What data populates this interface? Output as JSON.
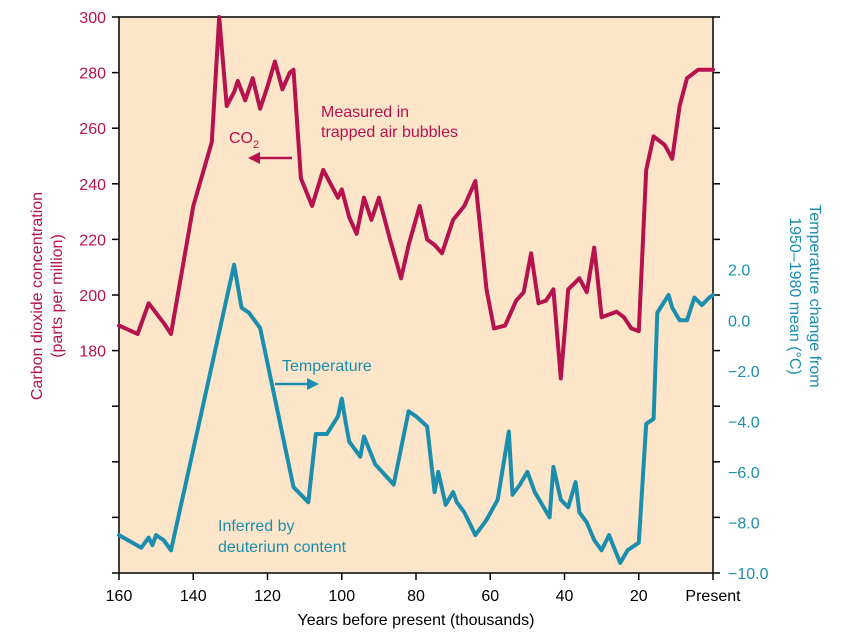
{
  "colors": {
    "co2": "#b5124e",
    "temperature": "#1b8ead",
    "background": "#fde5c9",
    "axis": "#000000"
  },
  "chart_data": {
    "type": "line",
    "xlabel": "Years before present (thousands)",
    "x_tick_labels": [
      "160",
      "140",
      "120",
      "100",
      "80",
      "60",
      "40",
      "20",
      "Present"
    ],
    "x_ticks": [
      160,
      140,
      120,
      100,
      80,
      60,
      40,
      20,
      0
    ],
    "xlim": [
      160,
      0
    ],
    "left_axis": {
      "label_line1": "Carbon dioxide concentration",
      "label_line2": "(parts per million)",
      "ylim": [
        100,
        300
      ],
      "ticks": [
        180,
        200,
        220,
        240,
        260,
        280,
        300
      ],
      "tick_labels": [
        "180",
        "200",
        "220",
        "240",
        "260",
        "280",
        "300"
      ]
    },
    "right_axis": {
      "label_line1": "Temperature change from",
      "label_line2": "1950–1980 mean (°C)",
      "ylim": [
        -10,
        12
      ],
      "ticks": [
        -10,
        -8,
        -6,
        -4,
        -2,
        0,
        2
      ],
      "tick_labels": [
        "−10.0",
        "−8.0",
        "−6.0",
        "−4.0",
        "−2.0",
        "0.0",
        "2.0"
      ]
    },
    "annotations": {
      "co2_measured_line1": "Measured in",
      "co2_measured_line2": "trapped air bubbles",
      "co2_label": "CO",
      "co2_subscript": "2",
      "temperature_label": "Temperature",
      "temp_inferred_line1": "Inferred by",
      "temp_inferred_line2": "deuterium content"
    },
    "series": [
      {
        "name": "CO2",
        "axis": "left",
        "x": [
          160,
          155,
          152,
          148,
          146,
          140,
          135,
          133,
          131,
          129,
          128,
          126,
          124,
          122,
          120,
          118,
          116,
          114,
          113,
          111,
          108,
          105,
          101,
          100,
          98,
          96,
          94,
          92,
          90,
          87,
          84,
          82,
          79,
          77,
          75,
          73,
          70,
          67,
          64,
          61,
          59,
          56,
          53,
          51,
          49,
          47,
          45,
          43,
          41,
          39,
          36,
          34,
          32,
          31,
          30,
          28,
          26,
          24,
          22,
          20,
          18,
          16,
          13,
          11,
          9,
          7,
          4,
          0
        ],
        "y": [
          189,
          186,
          197,
          190,
          186,
          232,
          255,
          300,
          268,
          273,
          277,
          270,
          278,
          267,
          275,
          284,
          274,
          280,
          281,
          242,
          232,
          245,
          235,
          238,
          228,
          222,
          235,
          227,
          235,
          220,
          206,
          218,
          232,
          220,
          218,
          215,
          227,
          232,
          241,
          202,
          188,
          189,
          198,
          201,
          215,
          197,
          198,
          202,
          170,
          202,
          206,
          201,
          217,
          205,
          192,
          193,
          194,
          192,
          188,
          187,
          245,
          257,
          254,
          249,
          268,
          278,
          281,
          281
        ]
      },
      {
        "name": "Temperature",
        "axis": "right",
        "x": [
          160,
          154,
          152,
          151,
          150,
          149,
          148,
          146,
          129,
          127,
          125,
          122,
          113,
          109,
          107,
          104,
          101,
          100,
          99,
          98,
          95,
          94,
          91,
          86,
          82,
          80,
          77,
          75,
          74,
          72,
          70,
          69,
          67,
          64,
          61,
          58,
          55,
          54,
          52,
          50,
          48,
          44,
          43,
          41,
          39,
          37,
          36,
          34,
          32,
          31,
          30,
          28,
          25,
          23,
          22,
          20,
          18,
          16,
          15,
          12,
          11,
          9,
          7,
          5,
          3,
          1,
          0
        ],
        "y": [
          -8.5,
          -9,
          -8.6,
          -8.9,
          -8.5,
          -8.6,
          -8.7,
          -9.1,
          2.2,
          0.5,
          0.3,
          -0.3,
          -6.6,
          -7.2,
          -4.5,
          -4.5,
          -3.8,
          -3.1,
          -4,
          -4.8,
          -5.4,
          -4.6,
          -5.7,
          -6.5,
          -3.6,
          -3.8,
          -4.2,
          -6.8,
          -6.0,
          -7.3,
          -6.8,
          -7.2,
          -7.6,
          -8.5,
          -7.9,
          -7.1,
          -4.4,
          -6.9,
          -6.5,
          -6.0,
          -6.8,
          -7.8,
          -5.8,
          -7.1,
          -7.4,
          -6.4,
          -7.6,
          -8.0,
          -8.7,
          -8.9,
          -9.1,
          -8.5,
          -9.6,
          -9.1,
          -9.0,
          -8.8,
          -4.1,
          -3.9,
          0.3,
          1.0,
          0.5,
          0.0,
          0.0,
          0.9,
          0.6,
          0.9,
          1.0
        ]
      }
    ]
  }
}
